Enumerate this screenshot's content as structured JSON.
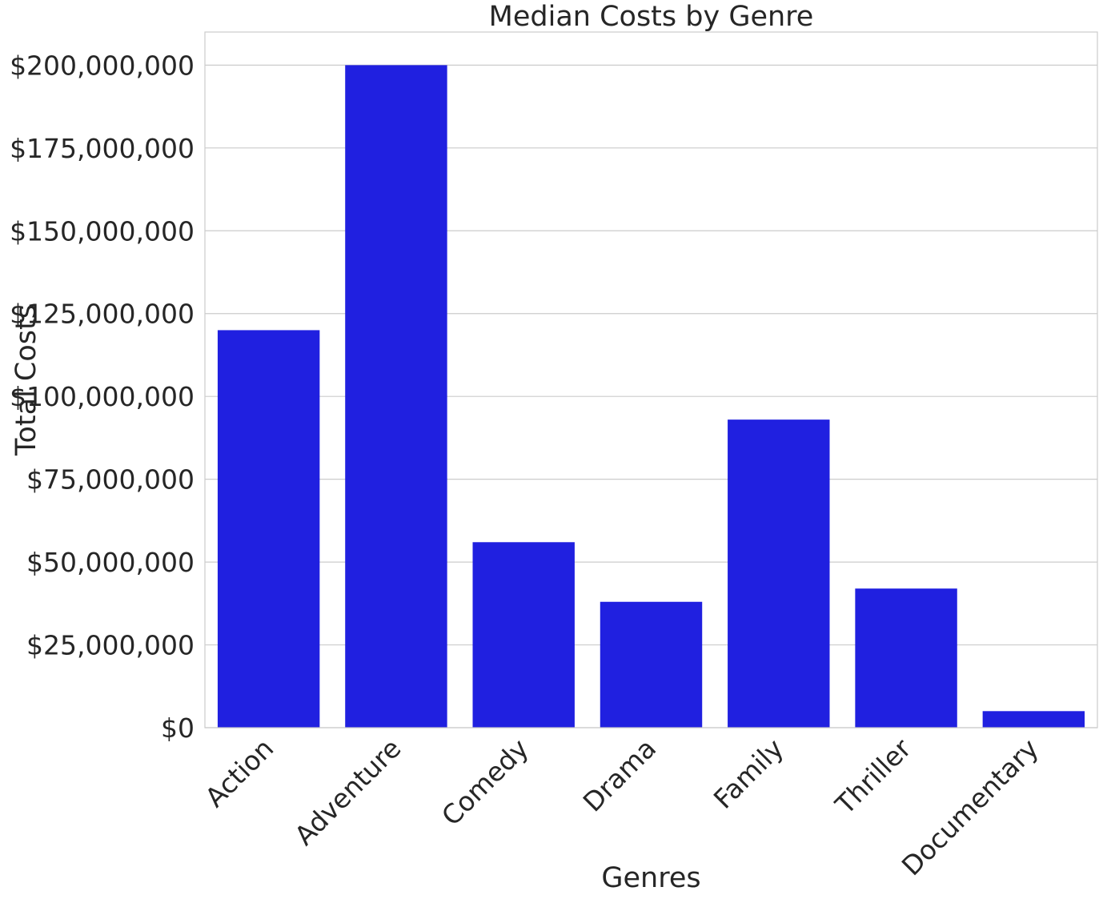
{
  "chart_data": {
    "type": "bar",
    "title": "Median Costs by Genre",
    "xlabel": "Genres",
    "ylabel": "Total Costs",
    "categories": [
      "Action",
      "Adventure",
      "Comedy",
      "Drama",
      "Family",
      "Thriller",
      "Documentary"
    ],
    "values": [
      120000000,
      200000000,
      56000000,
      38000000,
      93000000,
      42000000,
      5000000
    ],
    "ylim": [
      0,
      210000000
    ],
    "yticks": [
      0,
      25000000,
      50000000,
      75000000,
      100000000,
      125000000,
      150000000,
      175000000,
      200000000
    ],
    "ytick_labels": [
      "$0",
      "$25,000,000",
      "$50,000,000",
      "$75,000,000",
      "$100,000,000",
      "$125,000,000",
      "$150,000,000",
      "$175,000,000",
      "$200,000,000"
    ],
    "grid": true,
    "bar_color": "#2020e0",
    "grid_color": "#cccccc",
    "text_color": "#262626"
  }
}
